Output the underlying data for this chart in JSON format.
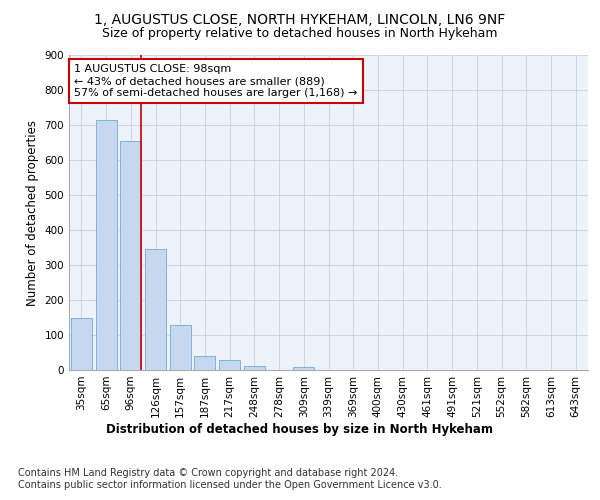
{
  "title1": "1, AUGUSTUS CLOSE, NORTH HYKEHAM, LINCOLN, LN6 9NF",
  "title2": "Size of property relative to detached houses in North Hykeham",
  "xlabel": "Distribution of detached houses by size in North Hykeham",
  "ylabel": "Number of detached properties",
  "categories": [
    "35sqm",
    "65sqm",
    "96sqm",
    "126sqm",
    "157sqm",
    "187sqm",
    "217sqm",
    "248sqm",
    "278sqm",
    "309sqm",
    "339sqm",
    "369sqm",
    "400sqm",
    "430sqm",
    "461sqm",
    "491sqm",
    "521sqm",
    "552sqm",
    "582sqm",
    "613sqm",
    "643sqm"
  ],
  "values": [
    150,
    715,
    655,
    345,
    130,
    40,
    30,
    12,
    0,
    10,
    0,
    0,
    0,
    0,
    0,
    0,
    0,
    0,
    0,
    0,
    0
  ],
  "bar_color": "#c5d8f0",
  "bar_edge_color": "#5a9fd4",
  "vline_color": "#cc0000",
  "vline_pos": 2.425,
  "annotation_line1": "1 AUGUSTUS CLOSE: 98sqm",
  "annotation_line2": "← 43% of detached houses are smaller (889)",
  "annotation_line3": "57% of semi-detached houses are larger (1,168) →",
  "annotation_box_color": "#cc0000",
  "ylim": [
    0,
    900
  ],
  "yticks": [
    0,
    100,
    200,
    300,
    400,
    500,
    600,
    700,
    800,
    900
  ],
  "footer1": "Contains HM Land Registry data © Crown copyright and database right 2024.",
  "footer2": "Contains public sector information licensed under the Open Government Licence v3.0.",
  "bg_color": "#eef2fb",
  "grid_color": "#c8cfe0",
  "title1_fontsize": 10,
  "title2_fontsize": 9,
  "axis_label_fontsize": 8.5,
  "tick_fontsize": 7.5,
  "annotation_fontsize": 8,
  "footer_fontsize": 7
}
